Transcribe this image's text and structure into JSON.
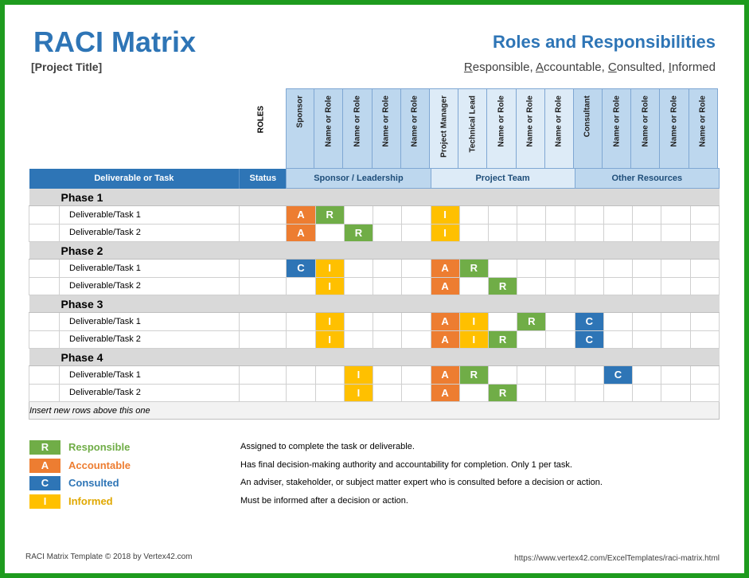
{
  "header": {
    "title": "RACI Matrix",
    "project_title": "[Project Title]",
    "subtitle": "Roles and Responsibilities",
    "raci_words": [
      {
        "letter": "R",
        "rest": "esponsible, "
      },
      {
        "letter": "A",
        "rest": "ccountable, "
      },
      {
        "letter": "C",
        "rest": "onsulted, "
      },
      {
        "letter": "I",
        "rest": "nformed"
      }
    ]
  },
  "roles_label": "ROLES",
  "roles": [
    {
      "label": "Sponsor",
      "group": "s"
    },
    {
      "label": "Name or Role",
      "group": "s"
    },
    {
      "label": "Name or Role",
      "group": "s"
    },
    {
      "label": "Name or Role",
      "group": "s"
    },
    {
      "label": "Name or Role",
      "group": "s"
    },
    {
      "label": "Project Manager",
      "group": "t"
    },
    {
      "label": "Technical Lead",
      "group": "t"
    },
    {
      "label": "Name or Role",
      "group": "t"
    },
    {
      "label": "Name or Role",
      "group": "t"
    },
    {
      "label": "Name or Role",
      "group": "t"
    },
    {
      "label": "Consultant",
      "group": "o"
    },
    {
      "label": "Name or Role",
      "group": "o"
    },
    {
      "label": "Name or Role",
      "group": "o"
    },
    {
      "label": "Name or Role",
      "group": "o"
    },
    {
      "label": "Name or Role",
      "group": "o"
    }
  ],
  "table_header": {
    "task": "Deliverable or Task",
    "status": "Status",
    "groups": [
      {
        "label": "Sponsor / Leadership",
        "cls": "s"
      },
      {
        "label": "Project Team",
        "cls": "t"
      },
      {
        "label": "Other Resources",
        "cls": "o"
      }
    ]
  },
  "phases": [
    {
      "name": "Phase 1",
      "tasks": [
        {
          "name": "Deliverable/Task 1",
          "cells": [
            "A",
            "R",
            "",
            "",
            "",
            "I",
            "",
            "",
            "",
            "",
            "",
            "",
            "",
            "",
            ""
          ]
        },
        {
          "name": "Deliverable/Task 2",
          "cells": [
            "A",
            "",
            "R",
            "",
            "",
            "I",
            "",
            "",
            "",
            "",
            "",
            "",
            "",
            "",
            ""
          ]
        }
      ]
    },
    {
      "name": "Phase 2",
      "tasks": [
        {
          "name": "Deliverable/Task 1",
          "cells": [
            "C",
            "I",
            "",
            "",
            "",
            "A",
            "R",
            "",
            "",
            "",
            "",
            "",
            "",
            "",
            ""
          ]
        },
        {
          "name": "Deliverable/Task 2",
          "cells": [
            "",
            "I",
            "",
            "",
            "",
            "A",
            "",
            "R",
            "",
            "",
            "",
            "",
            "",
            "",
            ""
          ]
        }
      ]
    },
    {
      "name": "Phase 3",
      "tasks": [
        {
          "name": "Deliverable/Task 1",
          "cells": [
            "",
            "I",
            "",
            "",
            "",
            "A",
            "I",
            "",
            "R",
            "",
            "C",
            "",
            "",
            "",
            ""
          ]
        },
        {
          "name": "Deliverable/Task 2",
          "cells": [
            "",
            "I",
            "",
            "",
            "",
            "A",
            "I",
            "R",
            "",
            "",
            "C",
            "",
            "",
            "",
            ""
          ]
        }
      ]
    },
    {
      "name": "Phase 4",
      "tasks": [
        {
          "name": "Deliverable/Task 1",
          "cells": [
            "",
            "",
            "I",
            "",
            "",
            "A",
            "R",
            "",
            "",
            "",
            "",
            "C",
            "",
            "",
            ""
          ]
        },
        {
          "name": "Deliverable/Task 2",
          "cells": [
            "",
            "",
            "I",
            "",
            "",
            "A",
            "",
            "R",
            "",
            "",
            "",
            "",
            "",
            "",
            ""
          ]
        }
      ]
    }
  ],
  "insert_note": "Insert new rows above this one",
  "legend": [
    {
      "letter": "R",
      "name": "Responsible",
      "desc": "Assigned to complete the task or deliverable.",
      "color": "#70ad47"
    },
    {
      "letter": "A",
      "name": "Accountable",
      "desc": "Has final decision-making authority and accountability for completion. Only 1 per task.",
      "color": "#ed7d31"
    },
    {
      "letter": "C",
      "name": "Consulted",
      "desc": "An adviser, stakeholder, or subject matter expert who is consulted before a decision or action.",
      "color": "#2e75b6"
    },
    {
      "letter": "I",
      "name": "Informed",
      "desc": "Must be informed after a decision or action.",
      "color": "#ffc000"
    }
  ],
  "footer": {
    "left": "RACI Matrix Template © 2018 by Vertex42.com",
    "right": "https://www.vertex42.com/ExcelTemplates/raci-matrix.html"
  }
}
